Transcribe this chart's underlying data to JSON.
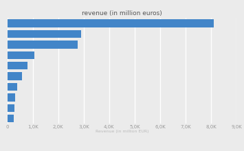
{
  "title": "revenue (in million euros)",
  "xlabel": "Revenue (in million EUR)",
  "values": [
    8100,
    2900,
    2750,
    1050,
    800,
    570,
    380,
    310,
    290,
    250
  ],
  "bar_color": "#4285c8",
  "background_color": "#ebebeb",
  "plot_bg_color": "#ebebeb",
  "xlim": [
    0,
    9000
  ],
  "xticks": [
    0,
    1000,
    2000,
    3000,
    4000,
    5000,
    6000,
    7000,
    8000,
    9000
  ],
  "xtick_labels": [
    "0",
    "1,0K",
    "2,0K",
    "3,0K",
    "4,0K",
    "5,0K",
    "6,0K",
    "7,0K",
    "8,0K",
    "9,0K"
  ],
  "title_fontsize": 6.5,
  "xlabel_fontsize": 4.5,
  "tick_fontsize": 5.0,
  "grid_color": "#ffffff",
  "bar_height": 0.75
}
